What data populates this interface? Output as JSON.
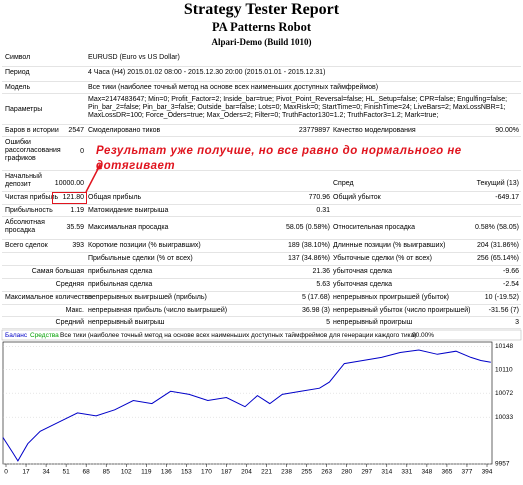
{
  "header": {
    "title": "Strategy Tester Report",
    "robot": "PA Patterns Robot",
    "server": "Alpari-Demo (Build 1010)"
  },
  "rows": [
    [
      "Символ",
      "EURUSD (Euro vs US Dollar)"
    ],
    [
      "Период",
      "4 Часа (H4) 2015.01.02 08:00 - 2015.12.30 20:00 (2015.01.01 - 2015.12.31)"
    ],
    [
      "Модель",
      "Все тики (наиболее точный метод на основе всех наименьших доступных таймфреймов)"
    ],
    [
      "Параметры",
      "Max=2147483647; Min=0; Profit_Factor=2; Inside_bar=true; Pivot_Point_Reversal=false; HL_Setup=false; CPR=false; Engulfing=false; Pin_bar_2=false; Pin_bar_3=false; Outside_bar=false; Lots=0; MaxRisk=0; StartTime=0; FinishTime=24; LiveBars=2; MaxLossNBR=1; MaxLossDR=100; Force_Oders=true; Max_Oders=2; Filter=0; TruthFactor130=1.2; TruthFactor3=1.2; Mark=true;"
    ],
    [
      "Баров в истории",
      "2547",
      "Смоделировано тиков",
      "23779897",
      "Качество моделирования",
      "90.00%"
    ],
    [
      "Ошибки рассогласования графиков",
      "0"
    ],
    [
      "Начальный депозит",
      "10000.00",
      "Спред",
      "Текущий (13)"
    ],
    [
      "Чистая прибыль",
      "121.80",
      "Общая прибыль",
      "770.96",
      "Общий убыток",
      "-649.17"
    ],
    [
      "Прибыльность",
      "1.19",
      "Матожидание выигрыша",
      "0.31"
    ],
    [
      "Абсолютная просадка",
      "35.59",
      "Максимальная просадка",
      "58.05 (0.58%)",
      "Относительная просадка",
      "0.58% (58.05)"
    ],
    [
      "Всего сделок",
      "393",
      "Короткие позиции (% выигравших)",
      "189 (38.10%)",
      "Длинные позиции (% выигравших)",
      "204 (31.86%)"
    ],
    [
      "Прибыльные сделки (% от всех)",
      "137 (34.86%)",
      "Убыточные сделки (% от всех)",
      "256 (65.14%)"
    ],
    [
      "Самая большая",
      "прибыльная сделка",
      "21.36",
      "убыточная сделка",
      "-9.66"
    ],
    [
      "Средняя",
      "прибыльная сделка",
      "5.63",
      "убыточная сделка",
      "-2.54"
    ],
    [
      "Максимальное количество",
      "непрерывных выигрышей (прибыль)",
      "5 (17.68)",
      "непрерывных проигрышей (убыток)",
      "10 (-19.52)"
    ],
    [
      "Макс.",
      "непрерывная прибыль (число выигрышей)",
      "36.98 (3)",
      "непрерывный убыток (число проигрышей)",
      "-31.56 (7)"
    ],
    [
      "Средний",
      "непрерывный выигрыш",
      "5",
      "непрерывный проигрыш",
      "3"
    ]
  ],
  "annotation": "Результат уже получше, но все равно до нормального не дотягивает",
  "chart": {
    "type": "line",
    "equity_label": "Средства",
    "equity_color": "#00a000",
    "model_text": "Все тики (наиболее точный метод на основе всех наименьших доступных таймфреймов для генерации каждого тика)",
    "quality": "90.00%",
    "x": [
      0,
      8,
      12,
      20,
      30,
      45,
      60,
      75,
      90,
      105,
      120,
      135,
      150,
      165,
      180,
      195,
      205,
      215,
      225,
      240,
      255,
      263,
      275,
      290,
      305,
      320,
      335,
      350,
      365,
      377,
      385,
      393
    ],
    "series": [
      {
        "name": "Баланс",
        "color": "#0000c8",
        "values": [
          10000,
          9975,
          9962,
          9990,
          10010,
          10025,
          10040,
          10035,
          10045,
          10060,
          10055,
          10075,
          10070,
          10060,
          10065,
          10050,
          10068,
          10055,
          10070,
          10075,
          10080,
          10090,
          10120,
          10125,
          10130,
          10138,
          10142,
          10135,
          10140,
          10130,
          10125,
          10122
        ]
      }
    ],
    "xlim": [
      0,
      394
    ],
    "ylim": [
      9957,
      10155
    ],
    "yticks": [
      10148,
      10110,
      10072,
      10033,
      9957
    ],
    "xtick_labels": [
      "0",
      "17",
      "34",
      "51",
      "68",
      "85",
      "102",
      "119",
      "136",
      "153",
      "170",
      "187",
      "204",
      "221",
      "238",
      "255",
      "263",
      "280",
      "297",
      "314",
      "331",
      "348",
      "365",
      "377",
      "394"
    ],
    "grid": true
  }
}
